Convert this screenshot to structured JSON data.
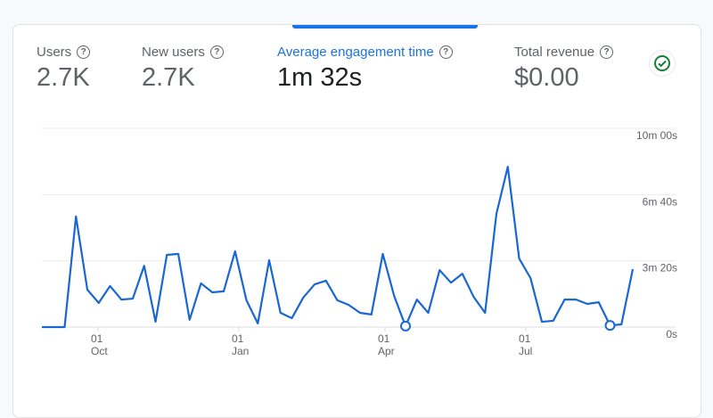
{
  "metrics": [
    {
      "label": "Users",
      "value": "2.7K",
      "active": false
    },
    {
      "label": "New users",
      "value": "2.7K",
      "active": false
    },
    {
      "label": "Average engagement time",
      "value": "1m 32s",
      "active": true
    },
    {
      "label": "Total revenue",
      "value": "$0.00",
      "active": false
    }
  ],
  "help_icon": "?",
  "status_icon": "check-circle-icon",
  "colors": {
    "accent": "#1a73e8",
    "line": "#1967d2",
    "check": "#188038"
  },
  "chart_data": {
    "type": "line",
    "ylim": [
      0,
      600
    ],
    "y_ticks": [
      {
        "value": 0,
        "label": "0s"
      },
      {
        "value": 200,
        "label": "3m 20s"
      },
      {
        "value": 400,
        "label": "6m 40s"
      },
      {
        "value": 600,
        "label": "10m 00s"
      }
    ],
    "x_ticks": [
      {
        "day": "01",
        "month": "Oct"
      },
      {
        "day": "01",
        "month": "Jan"
      },
      {
        "day": "01",
        "month": "Apr"
      },
      {
        "day": "01",
        "month": "Jul"
      }
    ],
    "grid": true,
    "y_axis_position": "right",
    "series": [
      {
        "values": [
          0,
          0,
          0,
          334,
          113,
          73,
          124,
          83,
          86,
          185,
          16,
          218,
          221,
          22,
          132,
          105,
          108,
          229,
          81,
          11,
          202,
          43,
          27,
          89,
          129,
          140,
          81,
          67,
          43,
          38,
          221,
          94,
          3,
          83,
          43,
          172,
          134,
          161,
          91,
          43,
          342,
          484,
          207,
          148,
          16,
          19,
          83,
          83,
          70,
          75,
          5,
          8,
          175
        ],
        "markers": [
          32,
          50
        ]
      }
    ]
  }
}
